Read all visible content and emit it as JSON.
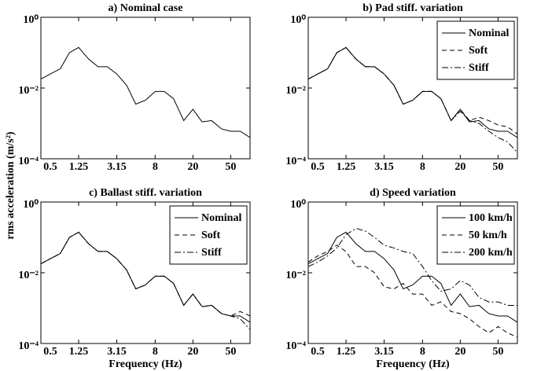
{
  "figure": {
    "ylabel": "rms acceleration (m/s²)"
  },
  "chart_data": [
    {
      "type": "line",
      "title": "a) Nominal case",
      "x": [
        0.5,
        0.63,
        0.8,
        1,
        1.25,
        1.6,
        2,
        2.5,
        3.15,
        4,
        5,
        6.3,
        8,
        10,
        12.5,
        16,
        20,
        25,
        31.5,
        40,
        50,
        63,
        80
      ],
      "series": [
        {
          "color": "#000000",
          "style": "solid",
          "values": [
            0.018,
            0.025,
            0.035,
            0.1,
            0.14,
            0.065,
            0.04,
            0.04,
            0.025,
            0.012,
            0.0035,
            0.0045,
            0.008,
            0.008,
            0.005,
            0.0012,
            0.0025,
            0.0011,
            0.0012,
            0.0007,
            0.0006,
            0.0006,
            0.0004
          ]
        }
      ],
      "xlog": true,
      "ylog": true,
      "xlim": [
        0.5,
        80
      ],
      "ylim": [
        0.0001,
        1
      ],
      "xticks": [
        0.5,
        1.25,
        3.15,
        8,
        20,
        50
      ],
      "yticks": [
        {
          "value": 0.0001,
          "label": "10⁻⁴"
        },
        {
          "value": 0.01,
          "label": "10⁻²"
        },
        {
          "value": 1,
          "label": "10⁰"
        }
      ]
    },
    {
      "type": "line",
      "title": "b) Pad stiff. variation",
      "x": [
        0.5,
        0.63,
        0.8,
        1,
        1.25,
        1.6,
        2,
        2.5,
        3.15,
        4,
        5,
        6.3,
        8,
        10,
        12.5,
        16,
        20,
        25,
        31.5,
        40,
        50,
        63,
        80
      ],
      "series": [
        {
          "name": "Nominal",
          "color": "#000000",
          "style": "solid",
          "values": [
            0.018,
            0.025,
            0.035,
            0.1,
            0.14,
            0.065,
            0.04,
            0.04,
            0.025,
            0.012,
            0.0035,
            0.0045,
            0.008,
            0.008,
            0.005,
            0.0012,
            0.0025,
            0.0011,
            0.0012,
            0.0007,
            0.0006,
            0.0006,
            0.0004
          ]
        },
        {
          "name": "Soft",
          "color": "#000000",
          "style": "dashed",
          "values": [
            0.018,
            0.025,
            0.035,
            0.1,
            0.14,
            0.065,
            0.04,
            0.04,
            0.025,
            0.012,
            0.0035,
            0.0045,
            0.008,
            0.008,
            0.005,
            0.0012,
            0.0025,
            0.0012,
            0.0015,
            0.0012,
            0.0009,
            0.0008,
            0.0005
          ]
        },
        {
          "name": "Stiff",
          "color": "#000000",
          "style": "dashdot",
          "values": [
            0.018,
            0.025,
            0.035,
            0.1,
            0.14,
            0.065,
            0.04,
            0.04,
            0.025,
            0.012,
            0.0035,
            0.0045,
            0.008,
            0.008,
            0.005,
            0.0012,
            0.0022,
            0.0012,
            0.001,
            0.0006,
            0.0004,
            0.0003,
            0.00015
          ]
        }
      ],
      "legend": "upper right",
      "xlog": true,
      "ylog": true,
      "xlim": [
        0.5,
        80
      ],
      "ylim": [
        0.0001,
        1
      ],
      "xticks": [
        0.5,
        1.25,
        3.15,
        8,
        20,
        50
      ],
      "yticks": [
        {
          "value": 0.0001,
          "label": "10⁻⁴"
        },
        {
          "value": 0.01,
          "label": "10⁻²"
        },
        {
          "value": 1,
          "label": "10⁰"
        }
      ]
    },
    {
      "type": "line",
      "title": "c) Ballast stiff. variation",
      "xlabel": "Frequency (Hz)",
      "x": [
        0.5,
        0.63,
        0.8,
        1,
        1.25,
        1.6,
        2,
        2.5,
        3.15,
        4,
        5,
        6.3,
        8,
        10,
        12.5,
        16,
        20,
        25,
        31.5,
        40,
        50,
        63,
        80
      ],
      "series": [
        {
          "name": "Nominal",
          "color": "#000000",
          "style": "solid",
          "values": [
            0.018,
            0.025,
            0.035,
            0.1,
            0.14,
            0.065,
            0.04,
            0.04,
            0.025,
            0.012,
            0.0035,
            0.0045,
            0.008,
            0.008,
            0.005,
            0.0012,
            0.0025,
            0.0011,
            0.0012,
            0.0007,
            0.0006,
            0.0006,
            0.0004
          ]
        },
        {
          "name": "Soft",
          "color": "#000000",
          "style": "dashed",
          "values": [
            0.018,
            0.025,
            0.035,
            0.1,
            0.14,
            0.065,
            0.04,
            0.04,
            0.025,
            0.012,
            0.0035,
            0.0045,
            0.008,
            0.008,
            0.005,
            0.0012,
            0.0025,
            0.0011,
            0.0012,
            0.0007,
            0.0006,
            0.0008,
            0.0006
          ]
        },
        {
          "name": "Stiff",
          "color": "#000000",
          "style": "dashdot",
          "values": [
            0.018,
            0.025,
            0.035,
            0.1,
            0.14,
            0.065,
            0.04,
            0.04,
            0.025,
            0.012,
            0.0035,
            0.0045,
            0.008,
            0.008,
            0.005,
            0.0012,
            0.0025,
            0.0011,
            0.0012,
            0.0007,
            0.0006,
            0.0005,
            0.00025
          ]
        }
      ],
      "legend": "upper right",
      "xlog": true,
      "ylog": true,
      "xlim": [
        0.5,
        80
      ],
      "ylim": [
        0.0001,
        1
      ],
      "xticks": [
        0.5,
        1.25,
        3.15,
        8,
        20,
        50
      ],
      "yticks": [
        {
          "value": 0.0001,
          "label": "10⁻⁴"
        },
        {
          "value": 0.01,
          "label": "10⁻²"
        },
        {
          "value": 1,
          "label": "10⁰"
        }
      ]
    },
    {
      "type": "line",
      "title": "d) Speed variation",
      "xlabel": "Frequency (Hz)",
      "x": [
        0.5,
        0.63,
        0.8,
        1,
        1.25,
        1.6,
        2,
        2.5,
        3.15,
        4,
        5,
        6.3,
        8,
        10,
        12.5,
        16,
        20,
        25,
        31.5,
        40,
        50,
        63,
        80
      ],
      "series": [
        {
          "name": "100 km/h",
          "color": "#000000",
          "style": "solid",
          "values": [
            0.018,
            0.025,
            0.035,
            0.1,
            0.14,
            0.065,
            0.04,
            0.04,
            0.025,
            0.012,
            0.0035,
            0.0045,
            0.008,
            0.008,
            0.005,
            0.0012,
            0.0025,
            0.0011,
            0.0012,
            0.0007,
            0.0006,
            0.0006,
            0.0004
          ]
        },
        {
          "name": "50 km/h",
          "color": "#000000",
          "style": "dashed",
          "values": [
            0.02,
            0.03,
            0.04,
            0.06,
            0.04,
            0.015,
            0.015,
            0.01,
            0.004,
            0.0035,
            0.005,
            0.0025,
            0.0025,
            0.0012,
            0.0015,
            0.0008,
            0.0007,
            0.0005,
            0.0003,
            0.0002,
            0.0003,
            0.0002,
            0.00015
          ]
        },
        {
          "name": "200 km/h",
          "color": "#000000",
          "style": "dashdot",
          "values": [
            0.015,
            0.02,
            0.03,
            0.05,
            0.12,
            0.18,
            0.15,
            0.1,
            0.06,
            0.05,
            0.04,
            0.035,
            0.015,
            0.006,
            0.003,
            0.0035,
            0.006,
            0.0045,
            0.002,
            0.0015,
            0.0015,
            0.0012,
            0.0012
          ]
        }
      ],
      "legend": "upper right",
      "xlog": true,
      "ylog": true,
      "xlim": [
        0.5,
        80
      ],
      "ylim": [
        0.0001,
        1
      ],
      "xticks": [
        0.5,
        1.25,
        3.15,
        8,
        20,
        50
      ],
      "yticks": [
        {
          "value": 0.0001,
          "label": "10⁻⁴"
        },
        {
          "value": 0.01,
          "label": "10⁻²"
        },
        {
          "value": 1,
          "label": "10⁰"
        }
      ]
    }
  ]
}
